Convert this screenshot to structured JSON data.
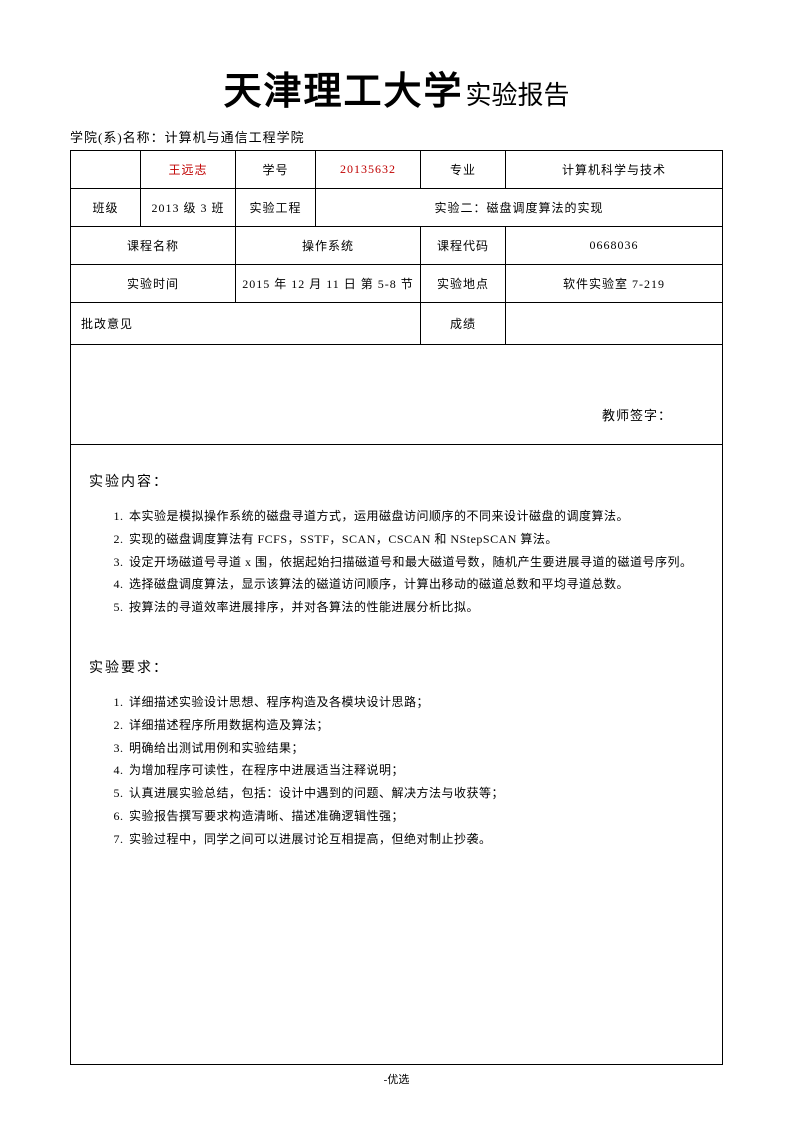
{
  "header": {
    "university": "天津理工大学",
    "report_title": "实验报告"
  },
  "dept": {
    "label": "学院(系)名称：",
    "value": "计算机与通信工程学院"
  },
  "table": {
    "row1": {
      "name": "王远志",
      "id_label": "学号",
      "id_value": "20135632",
      "major_label": "专业",
      "major_value": "计算机科学与技术"
    },
    "row2": {
      "class_label": "班级",
      "class_value": "2013 级 3 班",
      "project_label": "实验工程",
      "project_value": "实验二：磁盘调度算法的实现"
    },
    "row3": {
      "course_label": "课程名称",
      "course_value": "操作系统",
      "code_label": "课程代码",
      "code_value": "0668036"
    },
    "row4": {
      "time_label": "实验时间",
      "time_value": "2015 年 12 月 11 日  第 5-8 节",
      "place_label": "实验地点",
      "place_value": "软件实验室 7-219"
    },
    "row5": {
      "review_label": "批改意见",
      "grade_label": "成绩"
    },
    "signature": "教师签字："
  },
  "content": {
    "section1_title": "实验内容：",
    "section1_items": [
      "本实验是模拟操作系统的磁盘寻道方式，运用磁盘访问顺序的不同来设计磁盘的调度算法。",
      "实现的磁盘调度算法有 FCFS，SSTF，SCAN，CSCAN 和  NStepSCAN 算法。",
      "设定开场磁道号寻道 x 围，依据起始扫描磁道号和最大磁道号数，随机产生要进展寻道的磁道号序列。",
      "选择磁盘调度算法，显示该算法的磁道访问顺序，计算出移动的磁道总数和平均寻道总数。",
      "按算法的寻道效率进展排序，并对各算法的性能进展分析比拟。"
    ],
    "section2_title": "实验要求：",
    "section2_items": [
      "详细描述实验设计思想、程序构造及各模块设计思路；",
      "详细描述程序所用数据构造及算法；",
      "明确给出测试用例和实验结果；",
      "为增加程序可读性，在程序中进展适当注释说明；",
      "认真进展实验总结，包括：设计中遇到的问题、解决方法与收获等；",
      "实验报告撰写要求构造清晰、描述准确逻辑性强；",
      "实验过程中，同学之间可以进展讨论互相提高，但绝对制止抄袭。"
    ]
  },
  "footer": "-优选"
}
